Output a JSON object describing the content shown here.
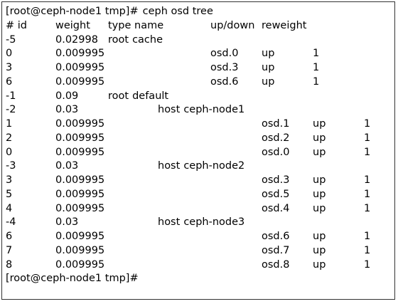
{
  "terminal": {
    "prompt": "[root@ceph-node1 tmp]#",
    "command": "ceph osd tree",
    "header": [
      "# id",
      "weight",
      "type name",
      "up/down",
      "reweight"
    ],
    "roots": [
      {
        "id": "-5",
        "weight": "0.02998",
        "type": "root",
        "name": "cache",
        "osds": [
          {
            "id": "0",
            "weight": "0.009995",
            "name": "osd.0",
            "status": "up",
            "reweight": "1"
          },
          {
            "id": "3",
            "weight": "0.009995",
            "name": "osd.3",
            "status": "up",
            "reweight": "1"
          },
          {
            "id": "6",
            "weight": "0.009995",
            "name": "osd.6",
            "status": "up",
            "reweight": "1"
          }
        ]
      },
      {
        "id": "-1",
        "weight": "0.09",
        "type": "root",
        "name": "default",
        "hosts": [
          {
            "id": "-2",
            "weight": "0.03",
            "type": "host",
            "name": "ceph-node1",
            "osds": [
              {
                "id": "1",
                "weight": "0.009995",
                "name": "osd.1",
                "status": "up",
                "reweight": "1"
              },
              {
                "id": "2",
                "weight": "0.009995",
                "name": "osd.2",
                "status": "up",
                "reweight": "1"
              },
              {
                "id": "0",
                "weight": "0.009995",
                "name": "osd.0",
                "status": "up",
                "reweight": "1"
              }
            ]
          },
          {
            "id": "-3",
            "weight": "0.03",
            "type": "host",
            "name": "ceph-node2",
            "osds": [
              {
                "id": "3",
                "weight": "0.009995",
                "name": "osd.3",
                "status": "up",
                "reweight": "1"
              },
              {
                "id": "5",
                "weight": "0.009995",
                "name": "osd.5",
                "status": "up",
                "reweight": "1"
              },
              {
                "id": "4",
                "weight": "0.009995",
                "name": "osd.4",
                "status": "up",
                "reweight": "1"
              }
            ]
          },
          {
            "id": "-4",
            "weight": "0.03",
            "type": "host",
            "name": "ceph-node3",
            "osds": [
              {
                "id": "6",
                "weight": "0.009995",
                "name": "osd.6",
                "status": "up",
                "reweight": "1"
              },
              {
                "id": "7",
                "weight": "0.009995",
                "name": "osd.7",
                "status": "up",
                "reweight": "1"
              },
              {
                "id": "8",
                "weight": "0.009995",
                "name": "osd.8",
                "status": "up",
                "reweight": "1"
              }
            ]
          }
        ]
      }
    ]
  }
}
